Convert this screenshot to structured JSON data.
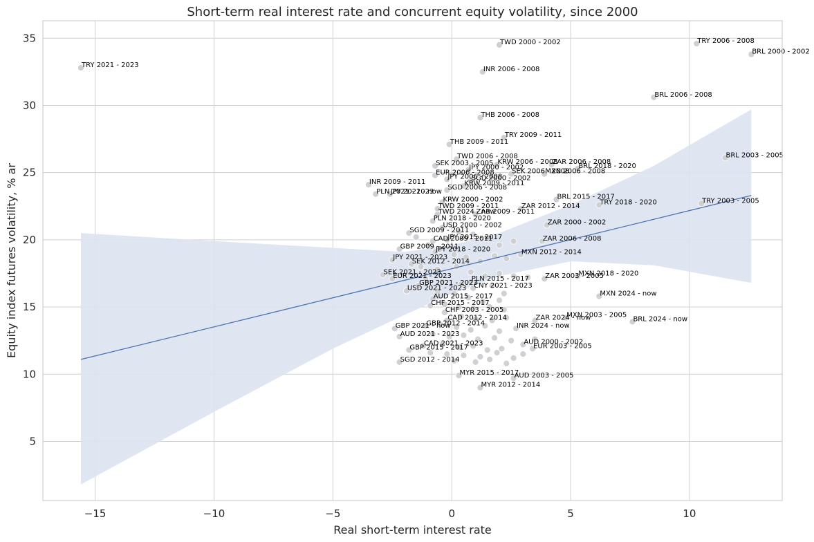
{
  "chart_data": {
    "type": "scatter",
    "title": "Short-term real interest rate and concurrent equity volatility, since 2000",
    "xlabel": "Real short-term interest rate",
    "ylabel": "Equity index futures volatility, % ar",
    "xlim": [
      -17.2,
      13.9
    ],
    "ylim": [
      0.6,
      36.3
    ],
    "xticks": [
      -15,
      -10,
      -5,
      0,
      5,
      10
    ],
    "xtick_labels": [
      "−15",
      "−10",
      "−5",
      "0",
      "5",
      "10"
    ],
    "yticks": [
      5,
      10,
      15,
      20,
      25,
      30,
      35
    ],
    "ytick_labels": [
      "5",
      "10",
      "15",
      "20",
      "25",
      "30",
      "35"
    ],
    "grid": true,
    "points": [
      {
        "label": "TRY 2021 - 2023",
        "x": -15.6,
        "y": 32.8
      },
      {
        "label": "TWD 2000 - 2002",
        "x": 2.0,
        "y": 34.5
      },
      {
        "label": "TRY 2006 - 2008",
        "x": 10.3,
        "y": 34.6
      },
      {
        "label": "BRL 2000 - 2002",
        "x": 12.6,
        "y": 33.8
      },
      {
        "label": "INR 2006 - 2008",
        "x": 1.3,
        "y": 32.5
      },
      {
        "label": "BRL 2006 - 2008",
        "x": 8.5,
        "y": 30.6
      },
      {
        "label": "THB 2006 - 2008",
        "x": 1.2,
        "y": 29.1
      },
      {
        "label": "TRY 2009 - 2011",
        "x": 2.2,
        "y": 27.6
      },
      {
        "label": "THB 2009 - 2011",
        "x": -0.1,
        "y": 27.1
      },
      {
        "label": "BRL 2003 - 2005",
        "x": 11.5,
        "y": 26.1
      },
      {
        "label": "TWD 2006 - 2008",
        "x": 0.2,
        "y": 26.0
      },
      {
        "label": "SEK 2003 - 2005",
        "x": -0.7,
        "y": 25.5
      },
      {
        "label": "KRW 2006 - 2008",
        "x": 1.9,
        "y": 25.6
      },
      {
        "label": "ZAR 2006 - 2008",
        "x": 4.2,
        "y": 25.6
      },
      {
        "label": "BRL 2018 - 2020",
        "x": 5.3,
        "y": 25.3
      },
      {
        "label": "JPY 2000 - 2002",
        "x": 0.7,
        "y": 25.2
      },
      {
        "label": "EUR 2006 - 2008",
        "x": -0.7,
        "y": 24.8
      },
      {
        "label": "SEK 2006 - 2008",
        "x": 2.5,
        "y": 24.9
      },
      {
        "label": "MXN 2006 - 2008",
        "x": 3.9,
        "y": 24.9
      },
      {
        "label": "JPY 2006 - 2008",
        "x": -0.2,
        "y": 24.5
      },
      {
        "label": "SGD 2000 - 2002",
        "x": 0.8,
        "y": 24.4
      },
      {
        "label": "INR 2009 - 2011",
        "x": -3.5,
        "y": 24.1
      },
      {
        "label": "KRW 2009 - 2011",
        "x": 0.5,
        "y": 24.0
      },
      {
        "label": "SGD 2006 - 2008",
        "x": -0.2,
        "y": 23.7
      },
      {
        "label": "PLN 2021 - 2023",
        "x": -3.2,
        "y": 23.4
      },
      {
        "label": "JPY 2021 - now",
        "x": -2.6,
        "y": 23.4
      },
      {
        "label": "BRL 2015 - 2017",
        "x": 4.4,
        "y": 23.0
      },
      {
        "label": "KRW 2000 - 2002",
        "x": -0.4,
        "y": 22.8
      },
      {
        "label": "TRY 2018 - 2020",
        "x": 6.2,
        "y": 22.6
      },
      {
        "label": "TRY 2003 - 2005",
        "x": 10.5,
        "y": 22.7
      },
      {
        "label": "TWD 2009 - 2011",
        "x": -0.6,
        "y": 22.3
      },
      {
        "label": "ZAR 2012 - 2014",
        "x": 2.9,
        "y": 22.3
      },
      {
        "label": "TWD 2024 - now",
        "x": -0.6,
        "y": 21.9
      },
      {
        "label": "ZAR 2009 - 2011",
        "x": 1.0,
        "y": 21.9
      },
      {
        "label": "PLN 2018 - 2020",
        "x": -0.8,
        "y": 21.4
      },
      {
        "label": "ZAR 2000 - 2002",
        "x": 4.0,
        "y": 21.1
      },
      {
        "label": "USD 2000 - 2002",
        "x": -0.4,
        "y": 20.9
      },
      {
        "label": "SGD 2009 - 2011",
        "x": -1.8,
        "y": 20.5
      },
      {
        "label": "CAD 2009 - 2011",
        "x": -0.8,
        "y": 19.9
      },
      {
        "label": "JPY 2015 - 2017",
        "x": -0.2,
        "y": 20.0
      },
      {
        "label": "ZAR 2006 - 2008",
        "x": 3.8,
        "y": 19.9
      },
      {
        "label": "GBP 2009 - 2011",
        "x": -2.2,
        "y": 19.3
      },
      {
        "label": "JPY 2018 - 2020",
        "x": -0.7,
        "y": 19.1
      },
      {
        "label": "MXN 2012 - 2014",
        "x": 2.9,
        "y": 18.9
      },
      {
        "label": "JPY 2021 - 2023",
        "x": -2.5,
        "y": 18.5
      },
      {
        "label": "SEK 2012 - 2014",
        "x": -1.7,
        "y": 18.2
      },
      {
        "label": "SEK 2021 - 2023",
        "x": -2.9,
        "y": 17.4
      },
      {
        "label": "EUR 2021 - 2023",
        "x": -2.5,
        "y": 17.1
      },
      {
        "label": "MXN 2018 - 2020",
        "x": 5.3,
        "y": 17.3
      },
      {
        "label": "ZAR 2003 - 2005",
        "x": 3.9,
        "y": 17.1
      },
      {
        "label": "PLN 2015 - 2017",
        "x": 0.8,
        "y": 16.9
      },
      {
        "label": "CNY 2021 - 2023",
        "x": 0.9,
        "y": 16.4
      },
      {
        "label": "GBP 2021 - 2023",
        "x": -1.4,
        "y": 16.6
      },
      {
        "label": "USD 2021 - 2023",
        "x": -1.9,
        "y": 16.2
      },
      {
        "label": "AUD 2015 - 2017",
        "x": -0.8,
        "y": 15.6
      },
      {
        "label": "MXN 2024 - now",
        "x": 6.2,
        "y": 15.8
      },
      {
        "label": "CHF 2015 - 2017",
        "x": -0.9,
        "y": 15.1
      },
      {
        "label": "CHF 2003 - 2005",
        "x": -0.3,
        "y": 14.6
      },
      {
        "label": "CAD 2012 - 2014",
        "x": -0.2,
        "y": 14.0
      },
      {
        "label": "MXN 2003 - 2005",
        "x": 4.8,
        "y": 14.2
      },
      {
        "label": "ZAR 2024 - now",
        "x": 3.5,
        "y": 14.0
      },
      {
        "label": "BRL 2024 - now",
        "x": 7.6,
        "y": 13.9
      },
      {
        "label": "GBP 2012 - 2014",
        "x": -1.1,
        "y": 13.6
      },
      {
        "label": "GBP 2021 - now",
        "x": -2.4,
        "y": 13.4
      },
      {
        "label": "INR 2024 - now",
        "x": 2.7,
        "y": 13.4
      },
      {
        "label": "AUD 2021 - 2023",
        "x": -2.2,
        "y": 12.8
      },
      {
        "label": "CAD 2021 - 2023",
        "x": -1.2,
        "y": 12.1
      },
      {
        "label": "AUD 2000 - 2002",
        "x": 3.0,
        "y": 12.2
      },
      {
        "label": "EUR 2003 - 2005",
        "x": 3.4,
        "y": 11.9
      },
      {
        "label": "GBP 2015 - 2017",
        "x": -1.8,
        "y": 11.8
      },
      {
        "label": "SGD 2012 - 2014",
        "x": -2.2,
        "y": 10.9
      },
      {
        "label": "MYR 2015 - 2017",
        "x": 0.3,
        "y": 9.9
      },
      {
        "label": "AUD 2003 - 2005",
        "x": 2.6,
        "y": 9.7
      },
      {
        "label": "MYR 2012 - 2014",
        "x": 1.2,
        "y": 9.0
      }
    ],
    "fill_points": [
      {
        "x": -1.5,
        "y": 20.2
      },
      {
        "x": -1.0,
        "y": 19.6
      },
      {
        "x": -0.5,
        "y": 19.3
      },
      {
        "x": 0.3,
        "y": 20.6
      },
      {
        "x": 0.9,
        "y": 20.4
      },
      {
        "x": 1.5,
        "y": 20.1
      },
      {
        "x": 2.0,
        "y": 19.6
      },
      {
        "x": 2.6,
        "y": 19.9
      },
      {
        "x": 0.1,
        "y": 18.9
      },
      {
        "x": 0.6,
        "y": 18.7
      },
      {
        "x": 1.2,
        "y": 18.4
      },
      {
        "x": 1.8,
        "y": 18.8
      },
      {
        "x": 2.3,
        "y": 18.6
      },
      {
        "x": -1.3,
        "y": 18.0
      },
      {
        "x": -0.6,
        "y": 17.8
      },
      {
        "x": 0.2,
        "y": 18.0
      },
      {
        "x": 0.8,
        "y": 17.6
      },
      {
        "x": 1.4,
        "y": 17.3
      },
      {
        "x": 2.0,
        "y": 17.5
      },
      {
        "x": 2.6,
        "y": 17.3
      },
      {
        "x": 3.2,
        "y": 17.2
      },
      {
        "x": -1.1,
        "y": 17.1
      },
      {
        "x": -0.4,
        "y": 16.9
      },
      {
        "x": 0.4,
        "y": 16.7
      },
      {
        "x": 1.7,
        "y": 16.6
      },
      {
        "x": 2.2,
        "y": 16.0
      },
      {
        "x": -0.6,
        "y": 16.2
      },
      {
        "x": 0.1,
        "y": 16.0
      },
      {
        "x": 0.7,
        "y": 15.7
      },
      {
        "x": 1.3,
        "y": 15.4
      },
      {
        "x": 2.0,
        "y": 15.5
      },
      {
        "x": -0.3,
        "y": 15.2
      },
      {
        "x": 0.3,
        "y": 15.0
      },
      {
        "x": 0.9,
        "y": 14.9
      },
      {
        "x": 1.6,
        "y": 15.0
      },
      {
        "x": 2.2,
        "y": 14.8
      },
      {
        "x": 0.4,
        "y": 14.3
      },
      {
        "x": 1.0,
        "y": 14.1
      },
      {
        "x": 1.7,
        "y": 14.0
      },
      {
        "x": 2.3,
        "y": 14.2
      },
      {
        "x": -0.5,
        "y": 13.7
      },
      {
        "x": 0.2,
        "y": 13.5
      },
      {
        "x": 0.8,
        "y": 13.3
      },
      {
        "x": 1.4,
        "y": 13.6
      },
      {
        "x": 2.0,
        "y": 13.2
      },
      {
        "x": -0.8,
        "y": 13.0
      },
      {
        "x": -0.1,
        "y": 12.8
      },
      {
        "x": 0.5,
        "y": 12.9
      },
      {
        "x": 1.1,
        "y": 12.6
      },
      {
        "x": 1.8,
        "y": 12.7
      },
      {
        "x": 2.5,
        "y": 12.5
      },
      {
        "x": -0.4,
        "y": 12.2
      },
      {
        "x": 0.3,
        "y": 12.0
      },
      {
        "x": 0.9,
        "y": 12.1
      },
      {
        "x": 1.5,
        "y": 11.8
      },
      {
        "x": 2.1,
        "y": 11.9
      },
      {
        "x": -0.9,
        "y": 11.6
      },
      {
        "x": -0.2,
        "y": 11.5
      },
      {
        "x": 0.5,
        "y": 11.4
      },
      {
        "x": 1.2,
        "y": 11.3
      },
      {
        "x": 1.9,
        "y": 11.6
      },
      {
        "x": 2.6,
        "y": 11.2
      },
      {
        "x": 0.1,
        "y": 11.0
      },
      {
        "x": 1.0,
        "y": 10.9
      },
      {
        "x": 1.6,
        "y": 11.1
      },
      {
        "x": 2.3,
        "y": 10.8
      },
      {
        "x": 3.0,
        "y": 11.5
      },
      {
        "x": 3.5,
        "y": 12.6
      }
    ],
    "regression": {
      "x": [
        -15.6,
        12.6
      ],
      "y": [
        11.1,
        23.3
      ],
      "ci": {
        "x": [
          -15.6,
          -10.0,
          -5.0,
          -2.0,
          0.0,
          2.0,
          5.0,
          8.5,
          12.6
        ],
        "upper": [
          20.5,
          19.9,
          19.4,
          19.1,
          19.6,
          20.5,
          22.6,
          25.5,
          29.7
        ],
        "lower": [
          1.8,
          7.2,
          11.9,
          14.4,
          16.0,
          17.3,
          18.4,
          18.1,
          16.8
        ]
      }
    },
    "colors": {
      "line": "#4c72b0",
      "band": "#dde3f0",
      "point": "#cfd0d3",
      "grid": "#cfcfcf",
      "axes_edge": "#cfcfcf"
    }
  }
}
